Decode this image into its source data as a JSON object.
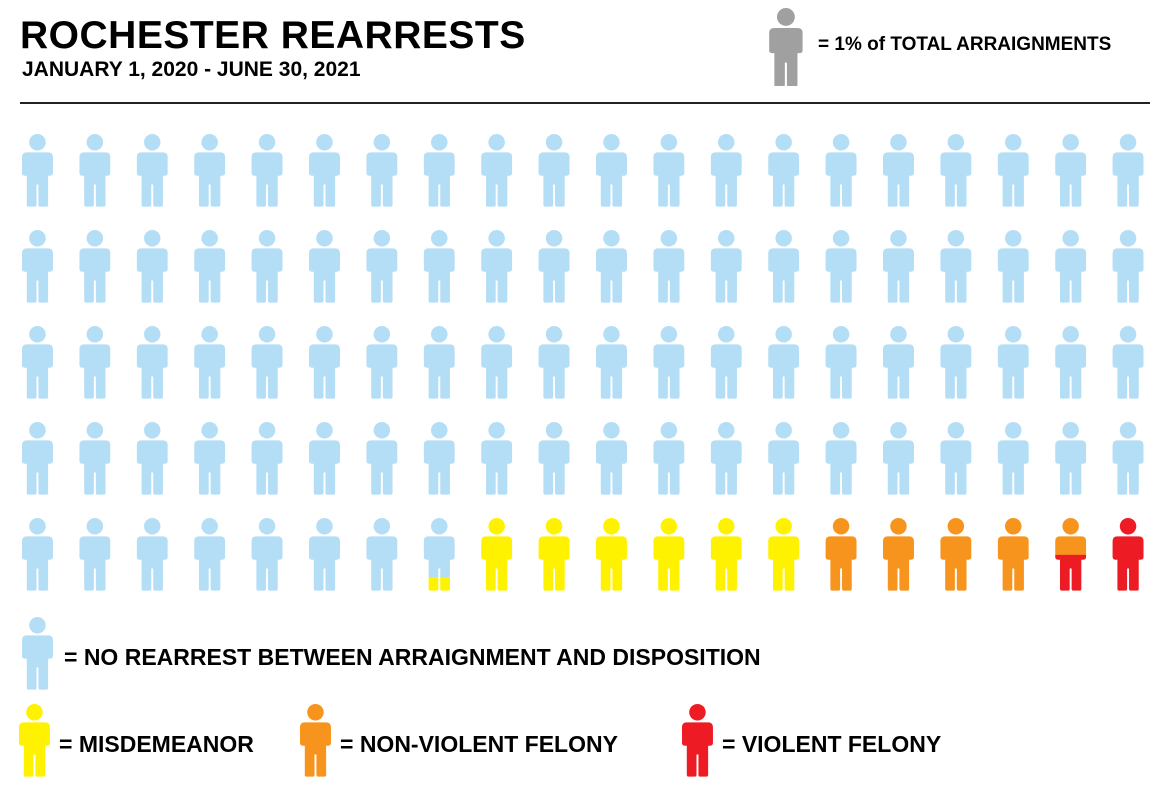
{
  "header": {
    "title": "ROCHESTER REARRESTS",
    "subtitle": "JANUARY 1, 2020 - JUNE 30, 2021",
    "unit_key": "= 1% of TOTAL ARRAIGNMENTS",
    "unit_key_icon": "person-icon",
    "unit_key_color": "#a0a0a0"
  },
  "legend": [
    {
      "key": "none",
      "label": "= NO REARREST BETWEEN ARRAIGNMENT AND DISPOSITION",
      "color": "#b3def5",
      "icon": "person-icon"
    },
    {
      "key": "misd",
      "label": "= MISDEMEANOR",
      "color": "#fff200",
      "icon": "person-icon"
    },
    {
      "key": "nvf",
      "label": "= NON-VIOLENT FELONY",
      "color": "#f7941d",
      "icon": "person-icon"
    },
    {
      "key": "vf",
      "label": "= VIOLENT FELONY",
      "color": "#ed1c24",
      "icon": "person-icon"
    }
  ],
  "chart_data": {
    "type": "isotype",
    "unit": "1% of total arraignments",
    "rows": 5,
    "columns": 20,
    "series": [
      {
        "name": "NO REARREST BETWEEN ARRAIGNMENT AND DISPOSITION",
        "value": 87.8,
        "color": "#b3def5"
      },
      {
        "name": "MISDEMEANOR",
        "value": 6.2,
        "color": "#fff200"
      },
      {
        "name": "NON-VIOLENT FELONY",
        "value": 4.5,
        "color": "#f7941d"
      },
      {
        "name": "VIOLENT FELONY",
        "value": 1.5,
        "color": "#ed1c24"
      }
    ]
  }
}
